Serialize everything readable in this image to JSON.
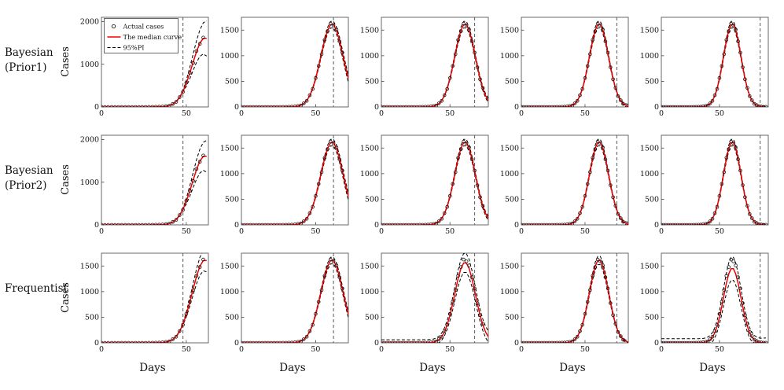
{
  "figure": {
    "ylabel": "Cases",
    "xlabel": "Days",
    "row_labels": [
      {
        "line1": "Bayesian",
        "line2": "(Prior1)"
      },
      {
        "line1": "Bayesian",
        "line2": "(Prior2)"
      },
      {
        "line1": "Frequentist",
        "line2": ""
      }
    ],
    "legend": [
      {
        "marker": "circle",
        "label": "Actual cases"
      },
      {
        "marker": "red-line",
        "label": "The median curve"
      },
      {
        "marker": "dashed-line",
        "label": "95%PI"
      }
    ],
    "colors": {
      "median": "#f00000",
      "pi": "#000000",
      "cutoff": "#666666",
      "points": "#1a1a1a",
      "axis": "#444444"
    }
  },
  "chart_data": {
    "type": "line",
    "x_days": [
      0,
      2,
      4,
      6,
      8,
      10,
      12,
      14,
      16,
      18,
      20,
      22,
      24,
      26,
      28,
      30,
      32,
      34,
      36,
      38,
      40,
      42,
      44,
      46,
      48,
      50,
      52,
      54,
      56,
      58,
      60,
      62,
      64,
      66,
      68,
      70,
      72,
      74,
      76,
      78,
      80,
      82,
      84,
      86,
      88,
      90
    ],
    "median": [
      0,
      0,
      0,
      0,
      0,
      0,
      0,
      0,
      0,
      0,
      0,
      0,
      0,
      0,
      0,
      1,
      1,
      3,
      6,
      15,
      32,
      65,
      124,
      219,
      361,
      552,
      789,
      1048,
      1297,
      1495,
      1606,
      1606,
      1495,
      1297,
      1048,
      789,
      552,
      361,
      219,
      124,
      65,
      32,
      15,
      6,
      3,
      1
    ],
    "actual": [
      0,
      0,
      0,
      0,
      0,
      0,
      0,
      0,
      0,
      0,
      0,
      0,
      0,
      0,
      1,
      2,
      3,
      5,
      9,
      18,
      28,
      70,
      118,
      228,
      352,
      565,
      800,
      1030,
      1310,
      1480,
      1625,
      1590,
      1510,
      1280,
      1060,
      775,
      540,
      372,
      210,
      131,
      60,
      35,
      12,
      8,
      2,
      1
    ],
    "subplots": [
      {
        "xlim": [
          0,
          63
        ],
        "xticks": [
          0,
          50
        ],
        "ylim": [
          0,
          2100
        ],
        "yticks": [
          0,
          1000,
          2000
        ],
        "cutoff_day": 48,
        "data_end_day": 60,
        "pi_spread": 0.04,
        "pi_fan": 25,
        "pi_floor": 0,
        "median_scale": 1,
        "show_legend": true
      },
      {
        "xlim": [
          0,
          72
        ],
        "xticks": [
          0,
          50
        ],
        "ylim": [
          0,
          1750
        ],
        "yticks": [
          0,
          500,
          1000,
          1500
        ],
        "cutoff_day": 62,
        "data_end_day": 68,
        "pi_spread": 0.04,
        "pi_fan": 5,
        "pi_floor": 0,
        "median_scale": 1,
        "show_legend": false
      },
      {
        "xlim": [
          0,
          78
        ],
        "xticks": [
          0,
          50
        ],
        "ylim": [
          0,
          1750
        ],
        "yticks": [
          0,
          500,
          1000,
          1500
        ],
        "cutoff_day": 68,
        "data_end_day": 74,
        "pi_spread": 0.04,
        "pi_fan": 4,
        "pi_floor": 0,
        "median_scale": 1,
        "show_legend": false
      },
      {
        "xlim": [
          0,
          84
        ],
        "xticks": [
          0,
          50
        ],
        "ylim": [
          0,
          1750
        ],
        "yticks": [
          0,
          500,
          1000,
          1500
        ],
        "cutoff_day": 75,
        "data_end_day": 80,
        "pi_spread": 0.04,
        "pi_fan": 4,
        "pi_floor": 0,
        "median_scale": 1,
        "show_legend": false
      },
      {
        "xlim": [
          0,
          92
        ],
        "xticks": [
          0,
          50
        ],
        "ylim": [
          0,
          1750
        ],
        "yticks": [
          0,
          500,
          1000,
          1500
        ],
        "cutoff_day": 85,
        "data_end_day": 90,
        "pi_spread": 0.04,
        "pi_fan": 4,
        "pi_floor": 0,
        "median_scale": 1,
        "show_legend": false
      },
      {
        "xlim": [
          0,
          63
        ],
        "xticks": [
          0,
          50
        ],
        "ylim": [
          0,
          2100
        ],
        "yticks": [
          0,
          1000,
          2000
        ],
        "cutoff_day": 48,
        "data_end_day": 60,
        "pi_spread": 0.04,
        "pi_fan": 22,
        "pi_floor": 0,
        "median_scale": 1,
        "show_legend": false
      },
      {
        "xlim": [
          0,
          72
        ],
        "xticks": [
          0,
          50
        ],
        "ylim": [
          0,
          1750
        ],
        "yticks": [
          0,
          500,
          1000,
          1500
        ],
        "cutoff_day": 62,
        "data_end_day": 68,
        "pi_spread": 0.04,
        "pi_fan": 5,
        "pi_floor": 0,
        "median_scale": 1,
        "show_legend": false
      },
      {
        "xlim": [
          0,
          78
        ],
        "xticks": [
          0,
          50
        ],
        "ylim": [
          0,
          1750
        ],
        "yticks": [
          0,
          500,
          1000,
          1500
        ],
        "cutoff_day": 68,
        "data_end_day": 74,
        "pi_spread": 0.04,
        "pi_fan": 4,
        "pi_floor": 0,
        "median_scale": 1,
        "show_legend": false
      },
      {
        "xlim": [
          0,
          84
        ],
        "xticks": [
          0,
          50
        ],
        "ylim": [
          0,
          1750
        ],
        "yticks": [
          0,
          500,
          1000,
          1500
        ],
        "cutoff_day": 75,
        "data_end_day": 80,
        "pi_spread": 0.04,
        "pi_fan": 4,
        "pi_floor": 0,
        "median_scale": 1,
        "show_legend": false
      },
      {
        "xlim": [
          0,
          92
        ],
        "xticks": [
          0,
          50
        ],
        "ylim": [
          0,
          1750
        ],
        "yticks": [
          0,
          500,
          1000,
          1500
        ],
        "cutoff_day": 85,
        "data_end_day": 90,
        "pi_spread": 0.04,
        "pi_fan": 4,
        "pi_floor": 0,
        "median_scale": 1,
        "show_legend": false
      },
      {
        "xlim": [
          0,
          63
        ],
        "xticks": [
          0,
          50
        ],
        "ylim": [
          0,
          1750
        ],
        "yticks": [
          0,
          500,
          1000,
          1500
        ],
        "cutoff_day": 48,
        "data_end_day": 60,
        "pi_spread": 0.05,
        "pi_fan": 10,
        "pi_floor": 0,
        "median_scale": 1,
        "show_legend": false
      },
      {
        "xlim": [
          0,
          72
        ],
        "xticks": [
          0,
          50
        ],
        "ylim": [
          0,
          1750
        ],
        "yticks": [
          0,
          500,
          1000,
          1500
        ],
        "cutoff_day": 62,
        "data_end_day": 68,
        "pi_spread": 0.04,
        "pi_fan": 4,
        "pi_floor": 0,
        "median_scale": 1,
        "show_legend": false
      },
      {
        "xlim": [
          0,
          78
        ],
        "xticks": [
          0,
          50
        ],
        "ylim": [
          0,
          1750
        ],
        "yticks": [
          0,
          500,
          1000,
          1500
        ],
        "cutoff_day": 68,
        "data_end_day": 74,
        "pi_spread": 0.08,
        "pi_fan": 4,
        "pi_floor": 60,
        "median_scale": 0.97,
        "show_legend": false
      },
      {
        "xlim": [
          0,
          84
        ],
        "xticks": [
          0,
          50
        ],
        "ylim": [
          0,
          1750
        ],
        "yticks": [
          0,
          500,
          1000,
          1500
        ],
        "cutoff_day": 75,
        "data_end_day": 80,
        "pi_spread": 0.05,
        "pi_fan": 3,
        "pi_floor": 0,
        "median_scale": 1,
        "show_legend": false
      },
      {
        "xlim": [
          0,
          92
        ],
        "xticks": [
          0,
          50
        ],
        "ylim": [
          0,
          1750
        ],
        "yticks": [
          0,
          500,
          1000,
          1500
        ],
        "cutoff_day": 85,
        "data_end_day": 90,
        "pi_spread": 0.1,
        "pi_fan": 3,
        "pi_floor": 80,
        "median_scale": 0.9,
        "show_legend": false
      }
    ]
  }
}
